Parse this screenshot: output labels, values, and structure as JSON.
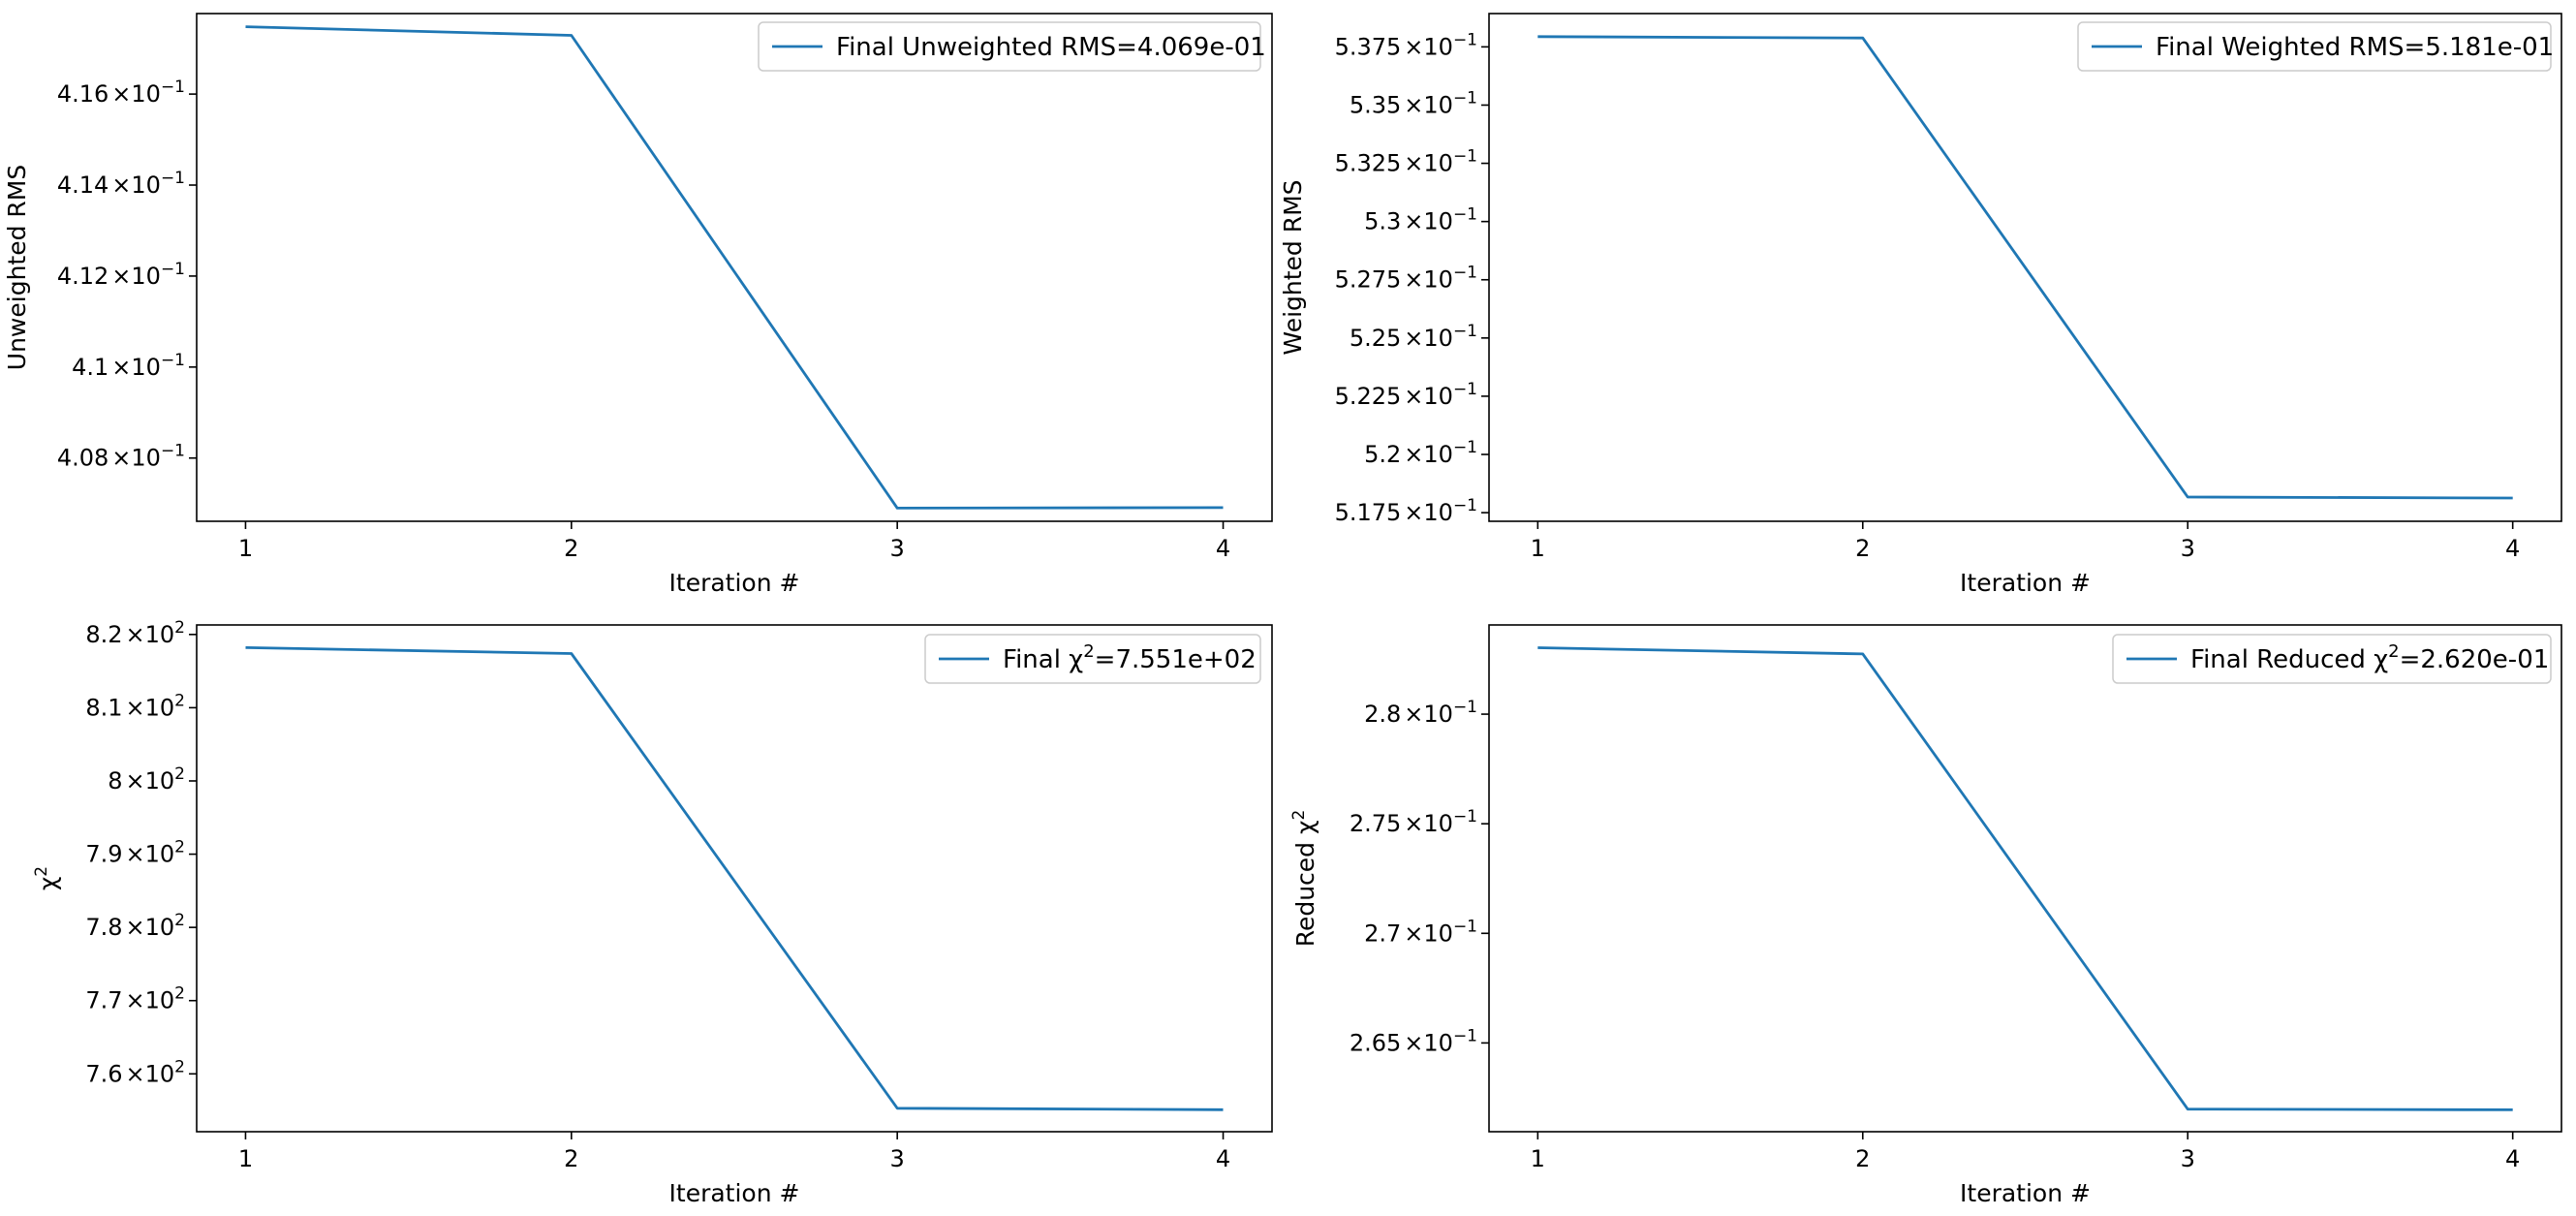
{
  "chart_data": [
    {
      "type": "line",
      "title": "",
      "xlabel": "Iteration #",
      "ylabel": "Unweighted RMS",
      "x": [
        1,
        2,
        3,
        4
      ],
      "series": [
        {
          "name": "Final Unweighted RMS=4.069e-01",
          "values": [
            0.41748,
            0.41729,
            0.4069,
            0.40691
          ]
        }
      ],
      "xlim": [
        0.85,
        4.15
      ],
      "ylim": [
        0.40661,
        0.41777
      ],
      "xticks": [
        {
          "value": 1,
          "label": "1"
        },
        {
          "value": 2,
          "label": "2"
        },
        {
          "value": 3,
          "label": "3"
        },
        {
          "value": 4,
          "label": "4"
        }
      ],
      "yticks": [
        {
          "value": 0.408,
          "mantissa": "4.08",
          "times": "×10",
          "exp": "−1"
        },
        {
          "value": 0.41,
          "mantissa": "4.1",
          "times": "×10",
          "exp": "−1"
        },
        {
          "value": 0.412,
          "mantissa": "4.12",
          "times": "×10",
          "exp": "−1"
        },
        {
          "value": 0.414,
          "mantissa": "4.14",
          "times": "×10",
          "exp": "−1"
        },
        {
          "value": 0.416,
          "mantissa": "4.16",
          "times": "×10",
          "exp": "−1"
        }
      ],
      "legend": {
        "position": "top-right",
        "label": "Final Unweighted RMS=4.069e-01",
        "color": "#1f77b4"
      },
      "grid": false
    },
    {
      "type": "line",
      "title": "",
      "xlabel": "Iteration #",
      "ylabel": "Weighted RMS",
      "x": [
        1,
        2,
        3,
        4
      ],
      "series": [
        {
          "name": "Final Weighted RMS=5.181e-01",
          "values": [
            0.53794,
            0.53788,
            0.51817,
            0.51813
          ]
        }
      ],
      "xlim": [
        0.85,
        4.15
      ],
      "ylim": [
        0.51713,
        0.53893
      ],
      "xticks": [
        {
          "value": 1,
          "label": "1"
        },
        {
          "value": 2,
          "label": "2"
        },
        {
          "value": 3,
          "label": "3"
        },
        {
          "value": 4,
          "label": "4"
        }
      ],
      "yticks": [
        {
          "value": 0.5175,
          "mantissa": "5.175",
          "times": "×10",
          "exp": "−1"
        },
        {
          "value": 0.52,
          "mantissa": "5.2",
          "times": "×10",
          "exp": "−1"
        },
        {
          "value": 0.5225,
          "mantissa": "5.225",
          "times": "×10",
          "exp": "−1"
        },
        {
          "value": 0.525,
          "mantissa": "5.25",
          "times": "×10",
          "exp": "−1"
        },
        {
          "value": 0.5275,
          "mantissa": "5.275",
          "times": "×10",
          "exp": "−1"
        },
        {
          "value": 0.53,
          "mantissa": "5.3",
          "times": "×10",
          "exp": "−1"
        },
        {
          "value": 0.5325,
          "mantissa": "5.325",
          "times": "×10",
          "exp": "−1"
        },
        {
          "value": 0.535,
          "mantissa": "5.35",
          "times": "×10",
          "exp": "−1"
        },
        {
          "value": 0.5375,
          "mantissa": "5.375",
          "times": "×10",
          "exp": "−1"
        }
      ],
      "legend": {
        "position": "top-right",
        "label": "Final Weighted RMS=5.181e-01",
        "color": "#1f77b4"
      },
      "grid": false
    },
    {
      "type": "line",
      "title": "",
      "xlabel": "Iteration #",
      "ylabel": "χ",
      "ylabel_sup": "2",
      "x": [
        1,
        2,
        3,
        4
      ],
      "series": [
        {
          "name": "Final χ²=7.551e+02",
          "values": [
            818.2,
            817.4,
            755.3,
            755.1
          ]
        }
      ],
      "xlim": [
        0.85,
        4.15
      ],
      "ylim": [
        752.1,
        821.3
      ],
      "xticks": [
        {
          "value": 1,
          "label": "1"
        },
        {
          "value": 2,
          "label": "2"
        },
        {
          "value": 3,
          "label": "3"
        },
        {
          "value": 4,
          "label": "4"
        }
      ],
      "yticks": [
        {
          "value": 760,
          "mantissa": "7.6",
          "times": "×10",
          "exp": "2"
        },
        {
          "value": 770,
          "mantissa": "7.7",
          "times": "×10",
          "exp": "2"
        },
        {
          "value": 780,
          "mantissa": "7.8",
          "times": "×10",
          "exp": "2"
        },
        {
          "value": 790,
          "mantissa": "7.9",
          "times": "×10",
          "exp": "2"
        },
        {
          "value": 800,
          "mantissa": "8",
          "times": "×10",
          "exp": "2"
        },
        {
          "value": 810,
          "mantissa": "8.1",
          "times": "×10",
          "exp": "2"
        },
        {
          "value": 820,
          "mantissa": "8.2",
          "times": "×10",
          "exp": "2"
        }
      ],
      "legend": {
        "position": "top-right",
        "prefix": "Final χ",
        "sup": "2",
        "suffix": "=7.551e+02",
        "color": "#1f77b4"
      },
      "grid": false
    },
    {
      "type": "line",
      "title": "",
      "xlabel": "Iteration #",
      "ylabel": "Reduced χ",
      "ylabel_sup": "2",
      "x": [
        1,
        2,
        3,
        4
      ],
      "series": [
        {
          "name": "Final Reduced χ²=2.620e-01",
          "values": [
            0.28303,
            0.28275,
            0.26198,
            0.26195
          ]
        }
      ],
      "xlim": [
        0.85,
        4.15
      ],
      "ylim": [
        0.26095,
        0.28407
      ],
      "xticks": [
        {
          "value": 1,
          "label": "1"
        },
        {
          "value": 2,
          "label": "2"
        },
        {
          "value": 3,
          "label": "3"
        },
        {
          "value": 4,
          "label": "4"
        }
      ],
      "yticks": [
        {
          "value": 0.265,
          "mantissa": "2.65",
          "times": "×10",
          "exp": "−1"
        },
        {
          "value": 0.27,
          "mantissa": "2.7",
          "times": "×10",
          "exp": "−1"
        },
        {
          "value": 0.275,
          "mantissa": "2.75",
          "times": "×10",
          "exp": "−1"
        },
        {
          "value": 0.28,
          "mantissa": "2.8",
          "times": "×10",
          "exp": "−1"
        }
      ],
      "legend": {
        "position": "top-right",
        "prefix": "Final Reduced χ",
        "sup": "2",
        "suffix": "=2.620e-01",
        "color": "#1f77b4"
      },
      "grid": false
    }
  ]
}
